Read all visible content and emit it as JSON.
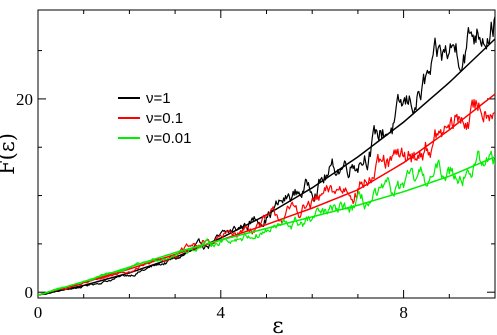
{
  "chart_data": {
    "type": "line",
    "xlabel": "ε",
    "ylabel": "F(ε)",
    "xlim": [
      0,
      10
    ],
    "ylim": [
      -0.6,
      29.2
    ],
    "x_ticks": [
      0,
      4,
      8
    ],
    "y_ticks": [
      0,
      20
    ],
    "x_minor_step": 1,
    "y_minor_step": 5,
    "grid": false,
    "legend_position": "upper-left",
    "series": [
      {
        "name": "ν=1",
        "color": "#000000",
        "x": [
          0,
          1,
          2,
          3,
          4,
          5,
          6,
          7,
          8,
          9,
          10
        ],
        "fit_y": [
          -0.3,
          0.7,
          2.0,
          3.6,
          5.6,
          8.0,
          10.8,
          14.0,
          17.6,
          21.7,
          26.2
        ],
        "noisy_y": [
          -0.3,
          0.6,
          1.8,
          3.4,
          5.5,
          8.2,
          11.2,
          14.2,
          18.5,
          24.5,
          29.2
        ],
        "noise_amplitude": [
          0.05,
          0.1,
          0.15,
          0.25,
          0.4,
          0.6,
          0.8,
          1.0,
          1.2,
          1.5,
          1.6
        ]
      },
      {
        "name": "ν=0.1",
        "color": "#ff0000",
        "x": [
          0,
          1,
          2,
          3,
          4,
          5,
          6,
          7,
          8,
          9,
          10
        ],
        "fit_y": [
          -0.3,
          1.0,
          2.4,
          3.9,
          5.4,
          7.0,
          8.7,
          10.6,
          13.4,
          16.8,
          20.5
        ],
        "noisy_y": [
          -0.3,
          0.9,
          2.3,
          4.0,
          5.6,
          7.3,
          9.0,
          11.4,
          13.5,
          16.6,
          20.2
        ],
        "noise_amplitude": [
          0.05,
          0.1,
          0.15,
          0.25,
          0.4,
          0.55,
          0.7,
          0.9,
          1.0,
          1.1,
          1.2
        ]
      },
      {
        "name": "ν=0.01",
        "color": "#00ee00",
        "x": [
          0,
          1,
          2,
          3,
          4,
          5,
          6,
          7,
          8,
          9,
          10
        ],
        "fit_y": [
          -0.3,
          1.1,
          2.6,
          4.1,
          5.4,
          6.6,
          7.8,
          9.0,
          10.4,
          12.0,
          14.0
        ],
        "noisy_y": [
          -0.3,
          1.1,
          2.5,
          4.0,
          5.3,
          6.4,
          7.4,
          8.8,
          10.6,
          12.6,
          13.6
        ],
        "noise_amplitude": [
          0.05,
          0.08,
          0.12,
          0.2,
          0.3,
          0.45,
          0.6,
          0.7,
          0.8,
          0.9,
          1.0
        ]
      }
    ]
  }
}
